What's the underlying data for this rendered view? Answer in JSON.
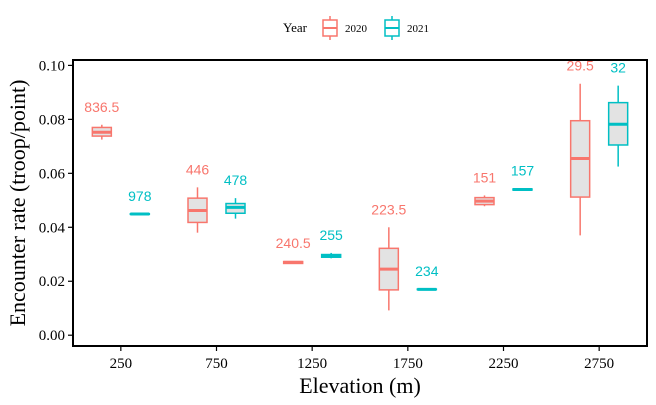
{
  "chart_data": {
    "type": "box",
    "xlabel": "Elevation (m)",
    "ylabel": "Encounter rate (troop/point)",
    "ylim": [
      -0.004,
      0.102
    ],
    "yticks": [
      "0.00",
      "0.02",
      "0.04",
      "0.06",
      "0.08",
      "0.10"
    ],
    "ytick_values": [
      0.0,
      0.02,
      0.04,
      0.06,
      0.08,
      0.1
    ],
    "categories": [
      "250",
      "750",
      "1250",
      "1750",
      "2250",
      "2750"
    ],
    "grid": false,
    "legend": {
      "title": "Year",
      "position": "top"
    },
    "series": [
      {
        "name": "2020",
        "color": "#F8766D",
        "boxes": [
          {
            "min": 0.0725,
            "q1": 0.0738,
            "median": 0.0752,
            "q3": 0.077,
            "max": 0.078,
            "label": "836.5"
          },
          {
            "min": 0.038,
            "q1": 0.0418,
            "median": 0.0462,
            "q3": 0.0508,
            "max": 0.0548,
            "label": "446"
          },
          {
            "min": 0.0264,
            "q1": 0.0266,
            "median": 0.027,
            "q3": 0.0273,
            "max": 0.0275,
            "label": "240.5"
          },
          {
            "min": 0.0092,
            "q1": 0.0168,
            "median": 0.0245,
            "q3": 0.0322,
            "max": 0.04,
            "label": "223.5"
          },
          {
            "min": 0.0478,
            "q1": 0.0484,
            "median": 0.0497,
            "q3": 0.051,
            "max": 0.0518,
            "label": "151"
          },
          {
            "min": 0.037,
            "q1": 0.0512,
            "median": 0.0655,
            "q3": 0.0795,
            "max": 0.0932,
            "label": "29.5"
          }
        ]
      },
      {
        "name": "2021",
        "color": "#00BFC4",
        "boxes": [
          {
            "min": 0.0448,
            "q1": 0.0448,
            "median": 0.0449,
            "q3": 0.045,
            "max": 0.045,
            "label": "978"
          },
          {
            "min": 0.0432,
            "q1": 0.0452,
            "median": 0.0474,
            "q3": 0.0488,
            "max": 0.0508,
            "label": "478"
          },
          {
            "min": 0.0285,
            "q1": 0.0289,
            "median": 0.0294,
            "q3": 0.0299,
            "max": 0.0305,
            "label": "255"
          },
          {
            "min": 0.0168,
            "q1": 0.0169,
            "median": 0.017,
            "q3": 0.0171,
            "max": 0.0172,
            "label": "234"
          },
          {
            "min": 0.0537,
            "q1": 0.0538,
            "median": 0.054,
            "q3": 0.0542,
            "max": 0.0543,
            "label": "157"
          },
          {
            "min": 0.0625,
            "q1": 0.0705,
            "median": 0.0782,
            "q3": 0.0862,
            "max": 0.0925,
            "label": "32"
          }
        ]
      }
    ]
  }
}
